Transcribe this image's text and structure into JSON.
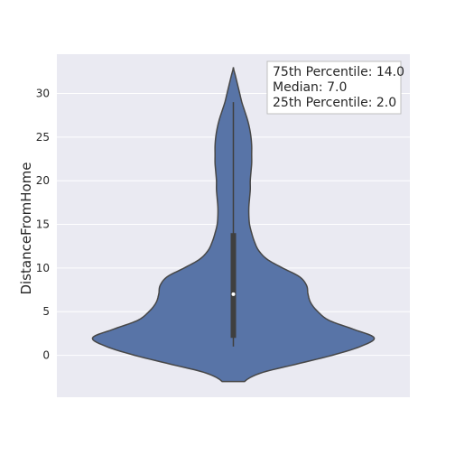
{
  "chart_data": {
    "type": "violin",
    "title": "",
    "xlabel": "",
    "ylabel": "DistanceFromHome",
    "ylim": [
      -4.8,
      34.5
    ],
    "yticks": [
      0,
      5,
      10,
      15,
      20,
      25,
      30
    ],
    "grid": true,
    "colors": {
      "background": "#EAEAF2",
      "violin_fill": "#5874A7",
      "violin_edge": "#474747",
      "box": "#3F3F3F",
      "median_dot": "#FFFFFF",
      "grid": "#FFFFFF"
    },
    "violin": {
      "data_min": 1,
      "data_max": 29,
      "kde_min": -3,
      "kde_max": 33,
      "q1": 2.0,
      "median": 7.0,
      "q3": 14.0,
      "density_profile": [
        [
          -3,
          0.08
        ],
        [
          -2,
          0.2
        ],
        [
          -1,
          0.45
        ],
        [
          0,
          0.7
        ],
        [
          1,
          0.9
        ],
        [
          2,
          1.0
        ],
        [
          3,
          0.85
        ],
        [
          4,
          0.68
        ],
        [
          5,
          0.6
        ],
        [
          6,
          0.55
        ],
        [
          7,
          0.53
        ],
        [
          8,
          0.52
        ],
        [
          9,
          0.47
        ],
        [
          10,
          0.35
        ],
        [
          11,
          0.24
        ],
        [
          12,
          0.18
        ],
        [
          13,
          0.15
        ],
        [
          14,
          0.13
        ],
        [
          15,
          0.115
        ],
        [
          16,
          0.11
        ],
        [
          17,
          0.11
        ],
        [
          18,
          0.115
        ],
        [
          19,
          0.12
        ],
        [
          20,
          0.12
        ],
        [
          21,
          0.125
        ],
        [
          22,
          0.13
        ],
        [
          23,
          0.13
        ],
        [
          24,
          0.13
        ],
        [
          25,
          0.125
        ],
        [
          26,
          0.115
        ],
        [
          27,
          0.1
        ],
        [
          28,
          0.08
        ],
        [
          29,
          0.06
        ],
        [
          30,
          0.045
        ],
        [
          31,
          0.03
        ],
        [
          32,
          0.015
        ],
        [
          33,
          0.0
        ]
      ]
    },
    "annotation": {
      "lines": [
        "75th Percentile: 14.0",
        "Median: 7.0",
        "25th Percentile: 2.0"
      ],
      "placement": "top-right"
    }
  }
}
